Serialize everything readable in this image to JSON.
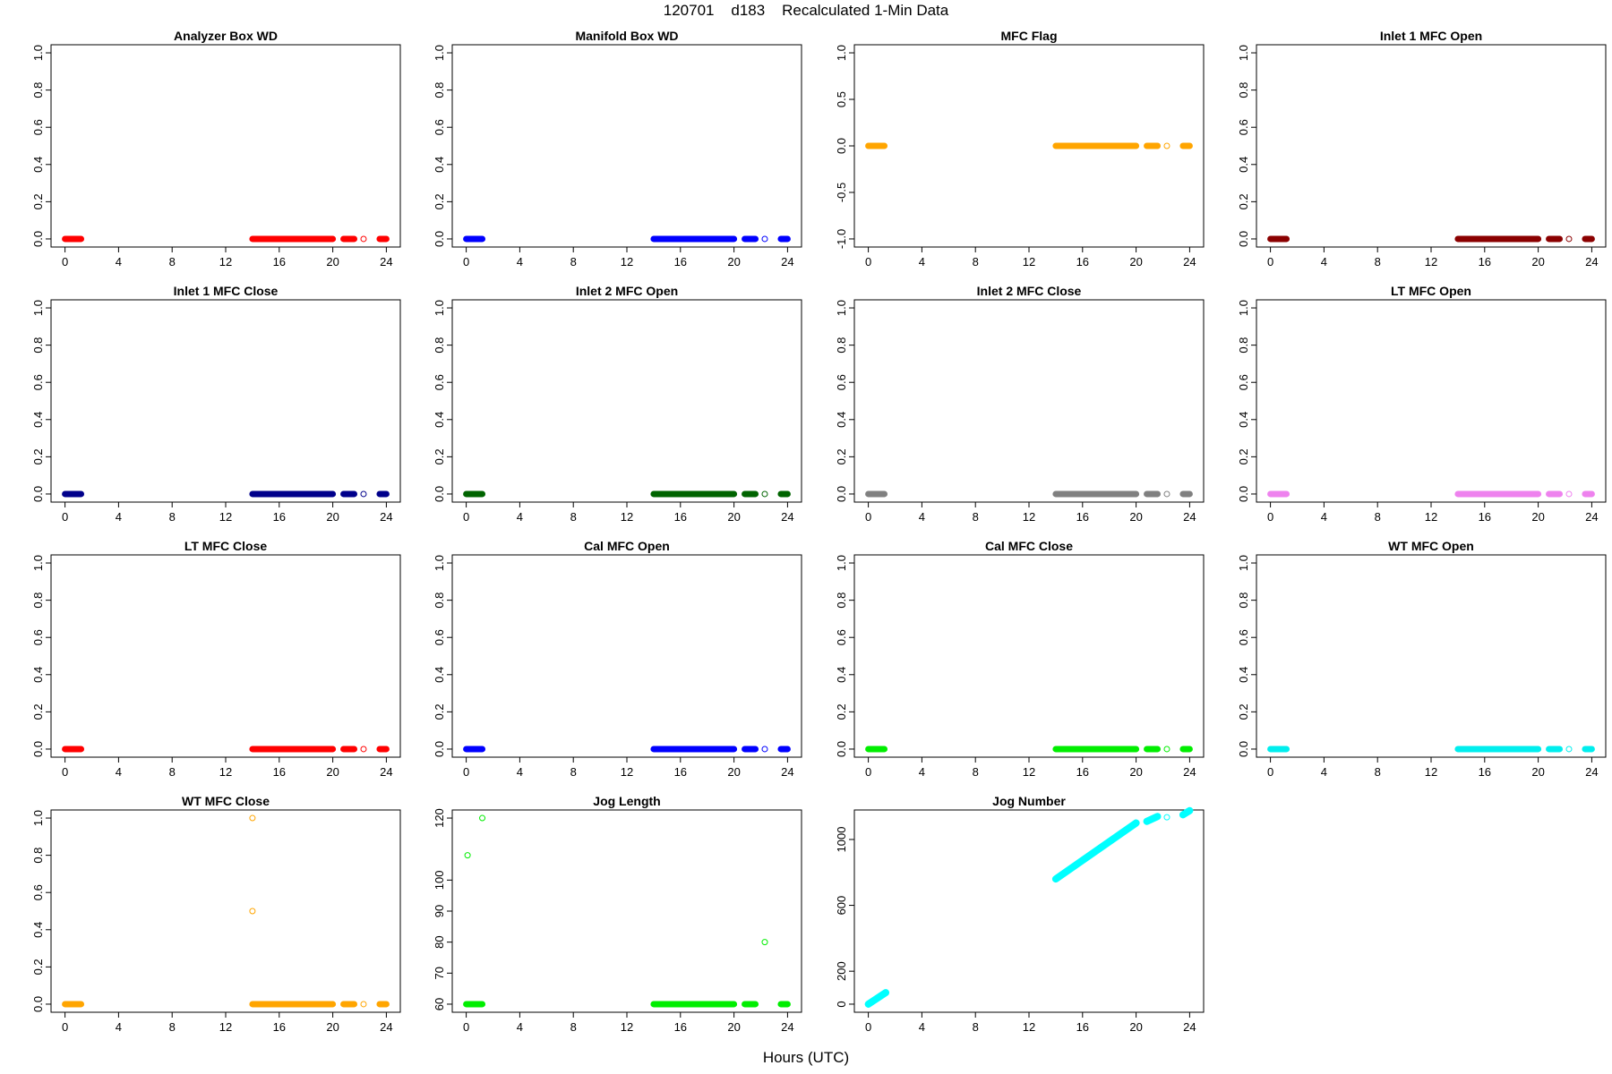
{
  "page": {
    "title": "120701    d183    Recalculated 1-Min Data",
    "xlabel": "Hours (UTC)"
  },
  "chart_data": [
    {
      "type": "scatter",
      "title": "Analyzer Box WD",
      "color": "#ff0000",
      "ylim": [
        0,
        1
      ],
      "yticks": [
        "0.0",
        "0.2",
        "0.4",
        "0.6",
        "0.8",
        "1.0"
      ],
      "yvals": [
        0,
        0.2,
        0.4,
        0.6,
        0.8,
        1.0
      ],
      "xlim": [
        0,
        24
      ],
      "xticks": [
        0,
        4,
        8,
        12,
        16,
        20,
        24
      ],
      "segments": [
        [
          0,
          1.2,
          0
        ],
        [
          14,
          20,
          0
        ],
        [
          20.8,
          21.6,
          0
        ],
        [
          23.5,
          24,
          0
        ]
      ],
      "points": [
        [
          22.3,
          0
        ]
      ]
    },
    {
      "type": "scatter",
      "title": "Manifold Box WD",
      "color": "#0000ff",
      "ylim": [
        0,
        1
      ],
      "yticks": [
        "0.0",
        "0.2",
        "0.4",
        "0.6",
        "0.8",
        "1.0"
      ],
      "yvals": [
        0,
        0.2,
        0.4,
        0.6,
        0.8,
        1.0
      ],
      "xlim": [
        0,
        24
      ],
      "xticks": [
        0,
        4,
        8,
        12,
        16,
        20,
        24
      ],
      "segments": [
        [
          0,
          1.2,
          0
        ],
        [
          14,
          20,
          0
        ],
        [
          20.8,
          21.6,
          0
        ],
        [
          23.5,
          24,
          0
        ]
      ],
      "points": [
        [
          22.3,
          0
        ]
      ]
    },
    {
      "type": "scatter",
      "title": "MFC Flag",
      "color": "#ffa500",
      "ylim": [
        -1,
        1
      ],
      "yticks": [
        "-1.0",
        "-0.5",
        "0.0",
        "0.5",
        "1.0"
      ],
      "yvals": [
        -1,
        -0.5,
        0,
        0.5,
        1.0
      ],
      "xlim": [
        0,
        24
      ],
      "xticks": [
        0,
        4,
        8,
        12,
        16,
        20,
        24
      ],
      "segments": [
        [
          0,
          1.2,
          0
        ],
        [
          14,
          20,
          0
        ],
        [
          20.8,
          21.6,
          0
        ],
        [
          23.5,
          24,
          0
        ]
      ],
      "points": [
        [
          22.3,
          0
        ]
      ]
    },
    {
      "type": "scatter",
      "title": "Inlet 1 MFC Open",
      "color": "#8b0000",
      "ylim": [
        0,
        1
      ],
      "yticks": [
        "0.0",
        "0.2",
        "0.4",
        "0.6",
        "0.8",
        "1.0"
      ],
      "yvals": [
        0,
        0.2,
        0.4,
        0.6,
        0.8,
        1.0
      ],
      "xlim": [
        0,
        24
      ],
      "xticks": [
        0,
        4,
        8,
        12,
        16,
        20,
        24
      ],
      "segments": [
        [
          0,
          1.2,
          0
        ],
        [
          14,
          20,
          0
        ],
        [
          20.8,
          21.6,
          0
        ],
        [
          23.5,
          24,
          0
        ]
      ],
      "points": [
        [
          22.3,
          0
        ]
      ]
    },
    {
      "type": "scatter",
      "title": "Inlet 1 MFC Close",
      "color": "#00008b",
      "ylim": [
        0,
        1
      ],
      "yticks": [
        "0.0",
        "0.2",
        "0.4",
        "0.6",
        "0.8",
        "1.0"
      ],
      "yvals": [
        0,
        0.2,
        0.4,
        0.6,
        0.8,
        1.0
      ],
      "xlim": [
        0,
        24
      ],
      "xticks": [
        0,
        4,
        8,
        12,
        16,
        20,
        24
      ],
      "segments": [
        [
          0,
          1.2,
          0
        ],
        [
          14,
          20,
          0
        ],
        [
          20.8,
          21.6,
          0
        ],
        [
          23.5,
          24,
          0
        ]
      ],
      "points": [
        [
          22.3,
          0
        ]
      ]
    },
    {
      "type": "scatter",
      "title": "Inlet 2 MFC Open",
      "color": "#006400",
      "ylim": [
        0,
        1
      ],
      "yticks": [
        "0.0",
        "0.2",
        "0.4",
        "0.6",
        "0.8",
        "1.0"
      ],
      "yvals": [
        0,
        0.2,
        0.4,
        0.6,
        0.8,
        1.0
      ],
      "xlim": [
        0,
        24
      ],
      "xticks": [
        0,
        4,
        8,
        12,
        16,
        20,
        24
      ],
      "segments": [
        [
          0,
          1.2,
          0
        ],
        [
          14,
          20,
          0
        ],
        [
          20.8,
          21.6,
          0
        ],
        [
          23.5,
          24,
          0
        ]
      ],
      "points": [
        [
          22.3,
          0
        ]
      ]
    },
    {
      "type": "scatter",
      "title": "Inlet 2 MFC Close",
      "color": "#808080",
      "ylim": [
        0,
        1
      ],
      "yticks": [
        "0.0",
        "0.2",
        "0.4",
        "0.6",
        "0.8",
        "1.0"
      ],
      "yvals": [
        0,
        0.2,
        0.4,
        0.6,
        0.8,
        1.0
      ],
      "xlim": [
        0,
        24
      ],
      "xticks": [
        0,
        4,
        8,
        12,
        16,
        20,
        24
      ],
      "segments": [
        [
          0,
          1.2,
          0
        ],
        [
          14,
          20,
          0
        ],
        [
          20.8,
          21.6,
          0
        ],
        [
          23.5,
          24,
          0
        ]
      ],
      "points": [
        [
          22.3,
          0
        ]
      ]
    },
    {
      "type": "scatter",
      "title": "LT MFC Open",
      "color": "#ee82ee",
      "ylim": [
        0,
        1
      ],
      "yticks": [
        "0.0",
        "0.2",
        "0.4",
        "0.6",
        "0.8",
        "1.0"
      ],
      "yvals": [
        0,
        0.2,
        0.4,
        0.6,
        0.8,
        1.0
      ],
      "xlim": [
        0,
        24
      ],
      "xticks": [
        0,
        4,
        8,
        12,
        16,
        20,
        24
      ],
      "segments": [
        [
          0,
          1.2,
          0
        ],
        [
          14,
          20,
          0
        ],
        [
          20.8,
          21.6,
          0
        ],
        [
          23.5,
          24,
          0
        ]
      ],
      "points": [
        [
          22.3,
          0
        ]
      ]
    },
    {
      "type": "scatter",
      "title": "LT MFC Close",
      "color": "#ff0000",
      "ylim": [
        0,
        1
      ],
      "yticks": [
        "0.0",
        "0.2",
        "0.4",
        "0.6",
        "0.8",
        "1.0"
      ],
      "yvals": [
        0,
        0.2,
        0.4,
        0.6,
        0.8,
        1.0
      ],
      "xlim": [
        0,
        24
      ],
      "xticks": [
        0,
        4,
        8,
        12,
        16,
        20,
        24
      ],
      "segments": [
        [
          0,
          1.2,
          0
        ],
        [
          14,
          20,
          0
        ],
        [
          20.8,
          21.6,
          0
        ],
        [
          23.5,
          24,
          0
        ]
      ],
      "points": [
        [
          22.3,
          0
        ]
      ]
    },
    {
      "type": "scatter",
      "title": "Cal MFC Open",
      "color": "#0000ff",
      "ylim": [
        0,
        1
      ],
      "yticks": [
        "0.0",
        "0.2",
        "0.4",
        "0.6",
        "0.8",
        "1.0"
      ],
      "yvals": [
        0,
        0.2,
        0.4,
        0.6,
        0.8,
        1.0
      ],
      "xlim": [
        0,
        24
      ],
      "xticks": [
        0,
        4,
        8,
        12,
        16,
        20,
        24
      ],
      "segments": [
        [
          0,
          1.2,
          0
        ],
        [
          14,
          20,
          0
        ],
        [
          20.8,
          21.6,
          0
        ],
        [
          23.5,
          24,
          0
        ]
      ],
      "points": [
        [
          22.3,
          0
        ]
      ]
    },
    {
      "type": "scatter",
      "title": "Cal MFC Close",
      "color": "#00ee00",
      "ylim": [
        0,
        1
      ],
      "yticks": [
        "0.0",
        "0.2",
        "0.4",
        "0.6",
        "0.8",
        "1.0"
      ],
      "yvals": [
        0,
        0.2,
        0.4,
        0.6,
        0.8,
        1.0
      ],
      "xlim": [
        0,
        24
      ],
      "xticks": [
        0,
        4,
        8,
        12,
        16,
        20,
        24
      ],
      "segments": [
        [
          0,
          1.2,
          0
        ],
        [
          14,
          20,
          0
        ],
        [
          20.8,
          21.6,
          0
        ],
        [
          23.5,
          24,
          0
        ]
      ],
      "points": [
        [
          22.3,
          0
        ]
      ]
    },
    {
      "type": "scatter",
      "title": "WT MFC Open",
      "color": "#00eeee",
      "ylim": [
        0,
        1
      ],
      "yticks": [
        "0.0",
        "0.2",
        "0.4",
        "0.6",
        "0.8",
        "1.0"
      ],
      "yvals": [
        0,
        0.2,
        0.4,
        0.6,
        0.8,
        1.0
      ],
      "xlim": [
        0,
        24
      ],
      "xticks": [
        0,
        4,
        8,
        12,
        16,
        20,
        24
      ],
      "segments": [
        [
          0,
          1.2,
          0
        ],
        [
          14,
          20,
          0
        ],
        [
          20.8,
          21.6,
          0
        ],
        [
          23.5,
          24,
          0
        ]
      ],
      "points": [
        [
          22.3,
          0
        ]
      ]
    },
    {
      "type": "scatter",
      "title": "WT MFC Close",
      "color": "#ffa500",
      "ylim": [
        0,
        1
      ],
      "yticks": [
        "0.0",
        "0.2",
        "0.4",
        "0.6",
        "0.8",
        "1.0"
      ],
      "yvals": [
        0,
        0.2,
        0.4,
        0.6,
        0.8,
        1.0
      ],
      "xlim": [
        0,
        24
      ],
      "xticks": [
        0,
        4,
        8,
        12,
        16,
        20,
        24
      ],
      "segments": [
        [
          0,
          1.2,
          0
        ],
        [
          14,
          20,
          0
        ],
        [
          20.8,
          21.6,
          0
        ],
        [
          23.5,
          24,
          0
        ]
      ],
      "points": [
        [
          22.3,
          0
        ],
        [
          14,
          1.0
        ],
        [
          14,
          0.5
        ]
      ]
    },
    {
      "type": "scatter",
      "title": "Jog Length",
      "color": "#00ee00",
      "ylim": [
        60,
        120
      ],
      "yticks": [
        "60",
        "70",
        "80",
        "90",
        "100",
        "120"
      ],
      "yvals": [
        60,
        70,
        80,
        90,
        100,
        120
      ],
      "xlim": [
        0,
        24
      ],
      "xticks": [
        0,
        4,
        8,
        12,
        16,
        20,
        24
      ],
      "segments": [
        [
          0,
          1.2,
          60
        ],
        [
          14,
          20,
          60
        ],
        [
          20.8,
          21.6,
          60
        ],
        [
          23.5,
          24,
          60
        ]
      ],
      "points": [
        [
          0.1,
          108
        ],
        [
          1.2,
          120
        ],
        [
          22.3,
          80
        ]
      ]
    },
    {
      "type": "scatter",
      "title": "Jog Number",
      "color": "#00ffff",
      "ylim": [
        0,
        1130
      ],
      "yticks": [
        "0",
        "200",
        "600",
        "1000"
      ],
      "yvals": [
        0,
        200,
        600,
        1000
      ],
      "xlim": [
        0,
        24
      ],
      "xticks": [
        0,
        4,
        8,
        12,
        16,
        20,
        24
      ],
      "lines": [
        [
          0,
          0,
          1.3,
          70
        ],
        [
          14,
          760,
          20,
          1100
        ],
        [
          20.8,
          1110,
          21.6,
          1140
        ],
        [
          23.5,
          1150,
          24,
          1175
        ]
      ],
      "points": [
        [
          22.3,
          1135
        ]
      ]
    }
  ]
}
